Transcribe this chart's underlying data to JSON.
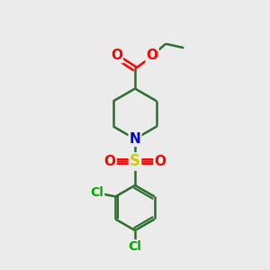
{
  "bg_color": "#ebebeb",
  "line_color": "#2a6e2a",
  "bond_width": 1.8,
  "atom_colors": {
    "O": "#ff0000",
    "N": "#0000cc",
    "S": "#cccc00",
    "Cl": "#00aa00",
    "C": "#2a6e2a"
  },
  "font_size_atoms": 11,
  "font_size_cl": 10,
  "font_size_so": 12
}
